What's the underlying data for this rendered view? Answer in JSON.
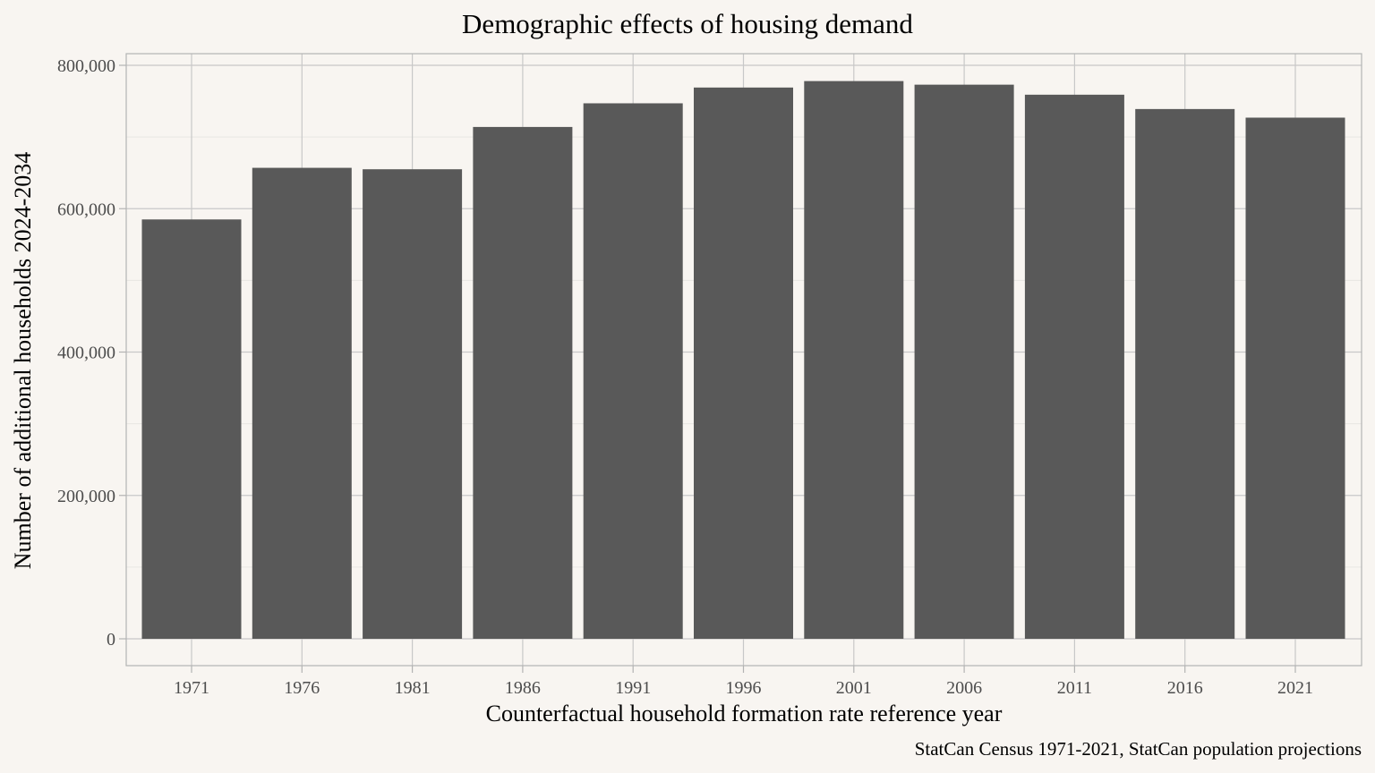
{
  "chart_data": {
    "type": "bar",
    "title": "Demographic effects of housing demand",
    "xlabel": "Counterfactual household formation rate reference year",
    "ylabel": "Number of additional households 2024-2034",
    "caption": "StatCan Census 1971-2021, StatCan population projections",
    "categories": [
      "1971",
      "1976",
      "1981",
      "1986",
      "1991",
      "1996",
      "2001",
      "2006",
      "2011",
      "2016",
      "2021"
    ],
    "values": [
      585000,
      657000,
      655000,
      714000,
      747000,
      769000,
      778000,
      773000,
      759000,
      739000,
      727000
    ],
    "yticks": [
      0,
      200000,
      400000,
      600000,
      800000
    ],
    "ytick_labels": [
      "0",
      "200,000",
      "400,000",
      "600,000",
      "800,000"
    ],
    "ylim": [
      0,
      800000
    ],
    "grid": true,
    "bar_color": "#595959",
    "panel_border_color": "#b3b3b3",
    "grid_major_color": "#c8c8c8",
    "grid_minor_color": "#e8e6e2",
    "background_color": "#f8f5f1"
  }
}
